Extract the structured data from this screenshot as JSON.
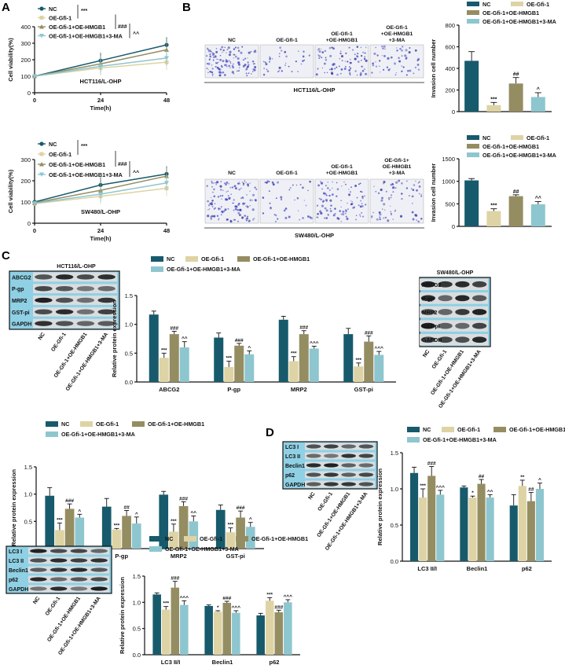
{
  "colors": {
    "NC": "#175a6c",
    "OE-Gfi-1": "#ded3a4",
    "OE-Gfi-1+OE-HMGB1": "#958d62",
    "OE-Gfi-1+OE-HMGB1+3-MA": "#8ec6cf",
    "blot_border": "#111111",
    "wb_bg": "#8fd0e4"
  },
  "panel_letters": [
    "A",
    "B",
    "C",
    "D"
  ],
  "legend_labels": [
    "NC",
    "OE-Gfi-1",
    "OE-Gfi-1+OE-HMGB1",
    "OE-Gfi-1+OE-HMGB1+3-MA"
  ],
  "chart_data": [
    {
      "id": "A1",
      "type": "line",
      "title": "HCT116/L-OHP",
      "xlabel": "Time(h)",
      "ylabel": "Cell viability(%)",
      "x": [
        0,
        24,
        48
      ],
      "ylim": [
        0,
        400
      ],
      "yticks": [
        0,
        100,
        200,
        300,
        400
      ],
      "xticks": [
        "0",
        "24",
        "48"
      ],
      "series": [
        {
          "name": "NC",
          "values": [
            100,
            195,
            290
          ]
        },
        {
          "name": "OE-Gfi-1",
          "values": [
            100,
            150,
            185
          ]
        },
        {
          "name": "OE-Gfi-1+OE-HMGB1",
          "values": [
            100,
            175,
            260
          ]
        },
        {
          "name": "OE-Gfi-1+OE-HMGB1+3-MA",
          "values": [
            100,
            160,
            210
          ]
        }
      ],
      "significance": [
        "***",
        "###",
        "^^"
      ]
    },
    {
      "id": "A2",
      "type": "line",
      "title": "SW480/L-OHP",
      "xlabel": "Time(h)",
      "ylabel": "Cell viability(%)",
      "x": [
        0,
        24,
        48
      ],
      "ylim": [
        0,
        300
      ],
      "yticks": [
        0,
        100,
        200,
        300
      ],
      "xticks": [
        "0",
        "24",
        "48"
      ],
      "series": [
        {
          "name": "NC",
          "values": [
            100,
            180,
            232
          ]
        },
        {
          "name": "OE-Gfi-1",
          "values": [
            92,
            127,
            165
          ]
        },
        {
          "name": "OE-Gfi-1+OE-HMGB1",
          "values": [
            96,
            155,
            222
          ]
        },
        {
          "name": "OE-Gfi-1+OE-HMGB1+3-MA",
          "values": [
            94,
            137,
            190
          ]
        }
      ],
      "significance": [
        "***",
        "###",
        "^^"
      ]
    },
    {
      "id": "B1",
      "type": "bar",
      "title": "HCT116/L-OHP",
      "ylabel": "Invasion cell number",
      "ylim": [
        0,
        800
      ],
      "yticks": [
        0,
        200,
        400,
        600,
        800
      ],
      "categories": [
        "NC",
        "OE-Gfi-1",
        "OE-Gfi-1+OE-HMGB1",
        "OE-Gfi-1+OE-HMGB1+3-MA"
      ],
      "values": [
        470,
        60,
        260,
        135
      ],
      "errors": [
        85,
        25,
        55,
        40
      ],
      "labels": [
        "",
        "***",
        "##",
        "^"
      ]
    },
    {
      "id": "B2",
      "type": "bar",
      "title": "SW480/L-OHP",
      "ylabel": "Invasion cell number",
      "ylim": [
        0,
        1500
      ],
      "yticks": [
        0,
        500,
        1000,
        1500
      ],
      "categories": [
        "NC",
        "OE-Gfi-1",
        "OE-Gfi-1+OE-HMGB1",
        "OE-Gfi-1+OE-HMGB1+3-MA"
      ],
      "values": [
        1020,
        340,
        670,
        490
      ],
      "errors": [
        40,
        50,
        30,
        60
      ],
      "labels": [
        "",
        "***",
        "##",
        "^^"
      ]
    },
    {
      "id": "C1",
      "type": "bar",
      "ylabel": "Relative protein expression",
      "ylim": [
        0,
        1.5
      ],
      "yticks": [
        "0.0",
        "0.5",
        "1.0",
        "1.5"
      ],
      "categories": [
        "ABCG2",
        "P-gp",
        "MRP2",
        "GST-pi"
      ],
      "series": [
        {
          "name": "NC",
          "values": [
            1.17,
            0.77,
            1.08,
            0.83
          ],
          "errors": [
            0.06,
            0.08,
            0.06,
            0.1
          ],
          "labels": [
            "",
            "",
            "",
            ""
          ]
        },
        {
          "name": "OE-Gfi-1",
          "values": [
            0.42,
            0.26,
            0.36,
            0.27
          ],
          "errors": [
            0.08,
            0.1,
            0.08,
            0.06
          ],
          "labels": [
            "***",
            "***",
            "***",
            "***"
          ]
        },
        {
          "name": "OE-Gfi-1+OE-HMGB1",
          "values": [
            0.83,
            0.63,
            0.83,
            0.7
          ],
          "errors": [
            0.05,
            0.04,
            0.06,
            0.1
          ],
          "labels": [
            "###",
            "###",
            "###",
            "###"
          ]
        },
        {
          "name": "OE-Gfi-1+OE-HMGB1+3-MA",
          "values": [
            0.6,
            0.48,
            0.58,
            0.47
          ],
          "errors": [
            0.1,
            0.06,
            0.04,
            0.06
          ],
          "labels": [
            "^^",
            "^",
            "^^^",
            "^^^"
          ]
        }
      ]
    },
    {
      "id": "C2",
      "type": "bar",
      "ylabel": "Relative protein expression",
      "ylim": [
        0,
        1.5
      ],
      "yticks": [
        "0.0",
        "0.5",
        "1.0",
        "1.5"
      ],
      "categories": [
        "ABCG2",
        "P-gp",
        "MRP2",
        "GST-pi"
      ],
      "series": [
        {
          "name": "NC",
          "values": [
            0.97,
            0.77,
            0.99,
            0.71
          ],
          "errors": [
            0.15,
            0.15,
            0.06,
            0.09
          ],
          "labels": [
            "",
            "",
            "",
            ""
          ]
        },
        {
          "name": "OE-Gfi-1",
          "values": [
            0.34,
            0.35,
            0.31,
            0.3
          ],
          "errors": [
            0.13,
            0.02,
            0.14,
            0.08
          ],
          "labels": [
            "***",
            "***",
            "***",
            "***"
          ]
        },
        {
          "name": "OE-Gfi-1+OE-HMGB1",
          "values": [
            0.73,
            0.6,
            0.78,
            0.57
          ],
          "errors": [
            0.09,
            0.1,
            0.08,
            0.12
          ],
          "labels": [
            "###",
            "##",
            "###",
            "###"
          ]
        },
        {
          "name": "OE-Gfi-1+OE-HMGB1+3-MA",
          "values": [
            0.57,
            0.46,
            0.5,
            0.4
          ],
          "errors": [
            0.06,
            0.12,
            0.1,
            0.08
          ],
          "labels": [
            "^",
            "^",
            "^^",
            "^"
          ]
        }
      ]
    },
    {
      "id": "D1",
      "type": "bar",
      "ylabel": "Relative protein expression",
      "ylim": [
        0,
        1.5
      ],
      "yticks": [
        "0.0",
        "0.5",
        "1.0",
        "1.5"
      ],
      "categories": [
        "LC3 II/I",
        "Beclin1",
        "p62"
      ],
      "series": [
        {
          "name": "NC",
          "values": [
            1.22,
            1.02,
            0.77
          ],
          "errors": [
            0.08,
            0.02,
            0.15
          ],
          "labels": [
            "",
            "",
            ""
          ]
        },
        {
          "name": "OE-Gfi-1",
          "values": [
            0.88,
            0.88,
            1.04
          ],
          "errors": [
            0.12,
            0.02,
            0.08
          ],
          "labels": [
            "***",
            "*",
            "**"
          ]
        },
        {
          "name": "OE-Gfi-1+OE-HMGB1",
          "values": [
            1.18,
            1.07,
            0.83
          ],
          "errors": [
            0.13,
            0.06,
            0.12
          ],
          "labels": [
            "###",
            "##",
            "##"
          ]
        },
        {
          "name": "OE-Gfi-1+OE-HMGB1+3-MA",
          "values": [
            0.92,
            0.88,
            1.0
          ],
          "errors": [
            0.06,
            0.04,
            0.08
          ],
          "labels": [
            "^^^",
            "^^",
            "^"
          ]
        }
      ]
    },
    {
      "id": "D2",
      "type": "bar",
      "ylabel": "Relative protein expression",
      "ylim": [
        0,
        1.5
      ],
      "yticks": [
        "0.0",
        "0.5",
        "1.0",
        "1.5"
      ],
      "categories": [
        "LC3 II/I",
        "Beclin1",
        "p62"
      ],
      "series": [
        {
          "name": "NC",
          "values": [
            1.15,
            0.93,
            0.75
          ],
          "errors": [
            0.03,
            0.02,
            0.04
          ],
          "labels": [
            "",
            "",
            ""
          ]
        },
        {
          "name": "OE-Gfi-1",
          "values": [
            0.86,
            0.82,
            1.03
          ],
          "errors": [
            0.06,
            0.02,
            0.06
          ],
          "labels": [
            "***",
            "*",
            "***"
          ]
        },
        {
          "name": "OE-Gfi-1+OE-HMGB1",
          "values": [
            1.28,
            0.99,
            0.81
          ],
          "errors": [
            0.12,
            0.03,
            0.04
          ],
          "labels": [
            "###",
            "###",
            "###"
          ]
        },
        {
          "name": "OE-Gfi-1+OE-HMGB1+3-MA",
          "values": [
            0.95,
            0.8,
            1.0
          ],
          "errors": [
            0.08,
            0.04,
            0.05
          ],
          "labels": [
            "^^^",
            "^^^",
            "^^^"
          ]
        }
      ]
    }
  ],
  "micrographs": [
    {
      "id": "B1",
      "labels": [
        "NC",
        "OE-Gfi-1",
        "OE-Gfi-1\n+OE-HMGB1",
        "OE-Gfi-1\n+OE-HMGB1\n+3-MA"
      ],
      "caption": "HCT116/L-OHP",
      "density": [
        0.9,
        0.25,
        0.6,
        0.4
      ]
    },
    {
      "id": "B2",
      "labels": [
        "NC",
        "OE-Gfi-1",
        "OE-Gfi-1\n+OE-HMGB1",
        "OE-Gfi-1+\nOE-HMGB1\n+3-MA"
      ],
      "caption": "SW480/L-OHP",
      "density": [
        1.0,
        0.3,
        0.7,
        0.5
      ]
    }
  ],
  "blots": [
    {
      "id": "C1",
      "title": "HCT116/L-OHP",
      "rows": [
        "ABCG2",
        "P-gp",
        "MRP2",
        "GST-pi",
        "GAPDH"
      ],
      "lanes": [
        "NC",
        "OE-Gfi-1",
        "OE-Gfi-1+OE-HMGB1",
        "OE-Gfi-1+OE-HMGB1+3-MA"
      ]
    },
    {
      "id": "C2",
      "title": "SW480/L-OHP",
      "rows": [
        "ABCG2",
        "P-gp",
        "MRP2",
        "GST-pi",
        "GAPDH"
      ],
      "lanes": [
        "NC",
        "OE-Gfi-1",
        "OE-Gfi-1+OE-HMGB1",
        "OE-Gfi-1+OE-HMGB1+3-MA"
      ]
    },
    {
      "id": "D1",
      "title": "",
      "rows": [
        "LC3 I",
        "LC3 II",
        "Beclin1",
        "p62",
        "GAPDH"
      ],
      "lanes": [
        "NC",
        "OE-Gfi-1",
        "OE-Gfi-1+OE-HMGB1",
        "OE-Gfi-1+OE-HMGB1+3-MA"
      ]
    },
    {
      "id": "D2",
      "title": "",
      "rows": [
        "LC3 I",
        "LC3 II",
        "Beclin1",
        "p62",
        "GAPDH"
      ],
      "lanes": [
        "NC",
        "OE-Gfi-1",
        "OE-Gfi-1+OE-HMGB1",
        "OE-Gfi-1+OE-HMGB1+3-MA"
      ]
    }
  ]
}
